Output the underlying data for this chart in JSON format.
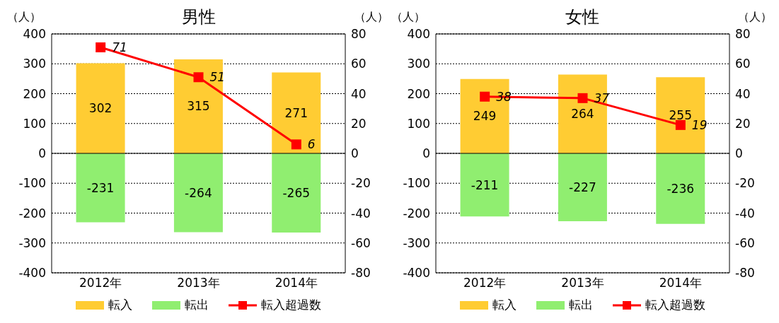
{
  "chart_data": [
    {
      "type": "bar",
      "title": "男性",
      "ylabel": "（人）",
      "y2label": "（人）",
      "categories": [
        "2012年",
        "2013年",
        "2014年"
      ],
      "stacked": true,
      "series": [
        {
          "name": "転入",
          "color": "#ffcc33",
          "values": [
            302,
            315,
            271
          ]
        },
        {
          "name": "転出",
          "color": "#90ee70",
          "values": [
            -231,
            -264,
            -265
          ]
        },
        {
          "name": "転入超過数",
          "type": "line",
          "axis": "y2",
          "color": "#ff0000",
          "values": [
            71,
            51,
            6
          ]
        }
      ],
      "ylim": [
        -400,
        400
      ],
      "yticks": [
        -400,
        -300,
        -200,
        -100,
        0,
        100,
        200,
        300,
        400
      ],
      "y2lim": [
        -80,
        80
      ],
      "y2ticks": [
        -80,
        -60,
        -40,
        -20,
        0,
        20,
        40,
        60,
        80
      ],
      "grid": "y",
      "legend": "bottom",
      "marker": "square",
      "data_labels": true
    },
    {
      "type": "bar",
      "title": "女性",
      "ylabel": "（人）",
      "y2label": "（人）",
      "categories": [
        "2012年",
        "2013年",
        "2014年"
      ],
      "stacked": true,
      "series": [
        {
          "name": "転入",
          "color": "#ffcc33",
          "values": [
            249,
            264,
            255
          ]
        },
        {
          "name": "転出",
          "color": "#90ee70",
          "values": [
            -211,
            -227,
            -236
          ]
        },
        {
          "name": "転入超過数",
          "type": "line",
          "axis": "y2",
          "color": "#ff0000",
          "values": [
            38,
            37,
            19
          ]
        }
      ],
      "ylim": [
        -400,
        400
      ],
      "yticks": [
        -400,
        -300,
        -200,
        -100,
        0,
        100,
        200,
        300,
        400
      ],
      "y2lim": [
        -80,
        80
      ],
      "y2ticks": [
        -80,
        -60,
        -40,
        -20,
        0,
        20,
        40,
        60,
        80
      ],
      "grid": "y",
      "legend": "bottom",
      "marker": "square",
      "data_labels": true
    }
  ]
}
